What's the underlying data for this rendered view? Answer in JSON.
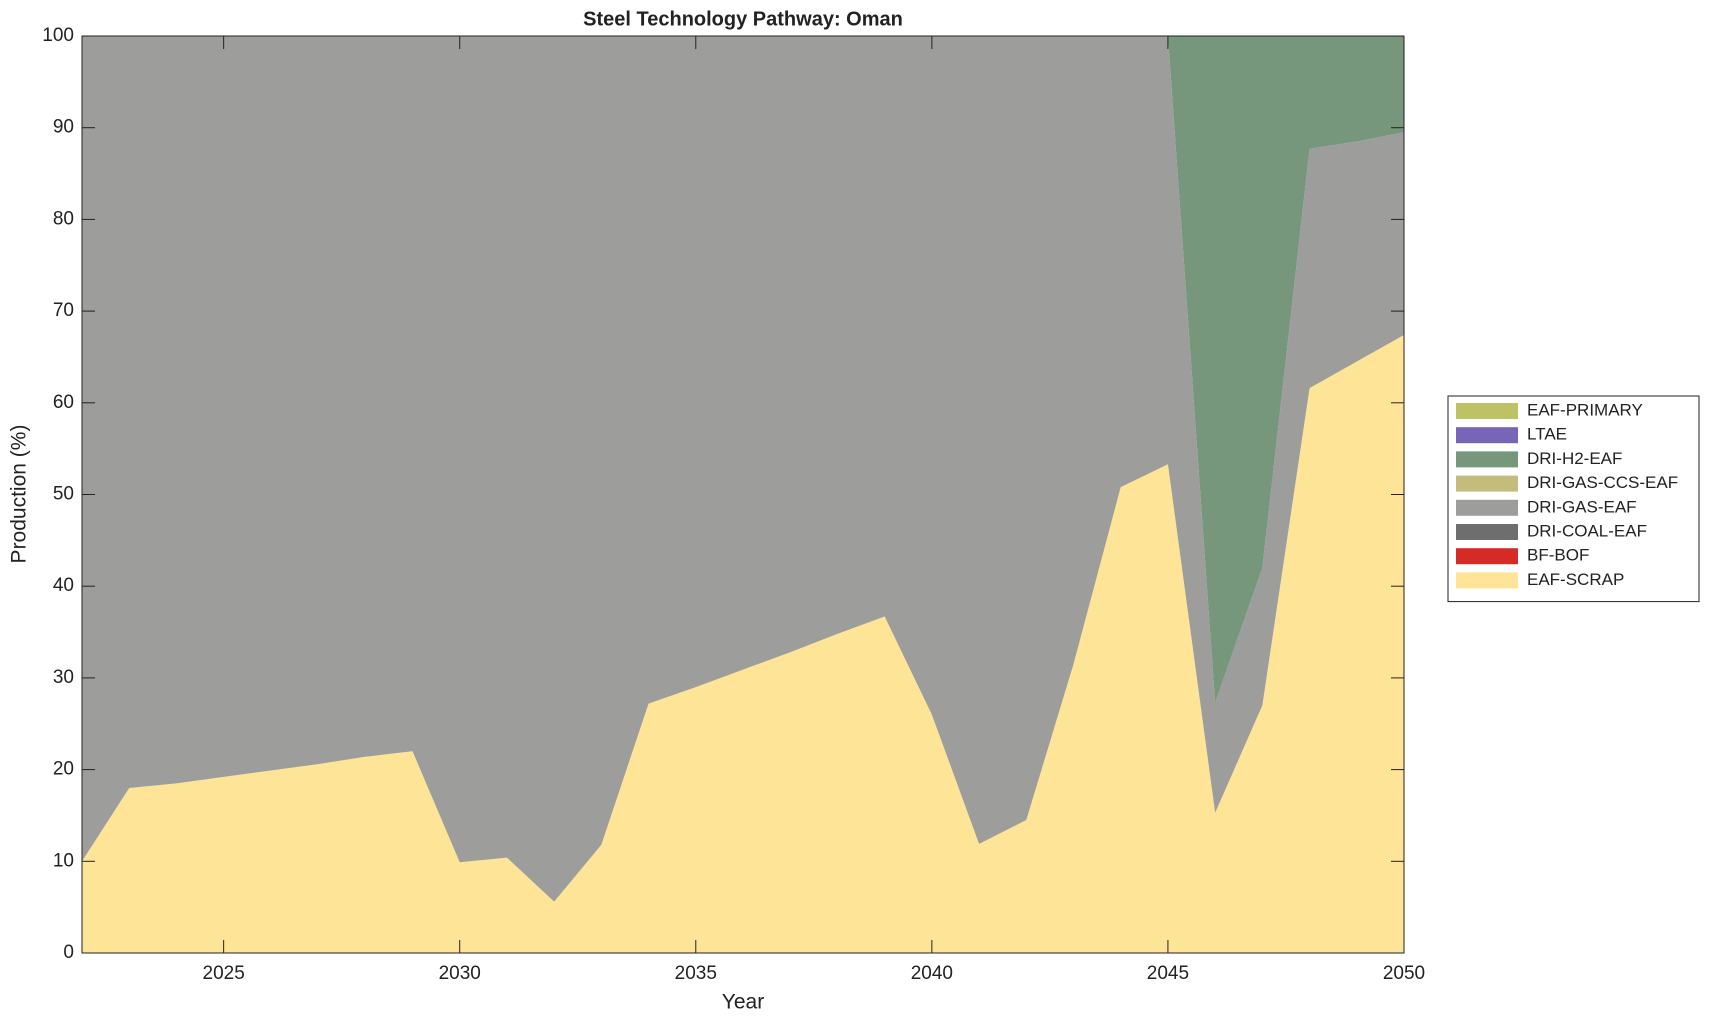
{
  "chart_data": {
    "type": "stacked-area",
    "title": "Steel Technology Pathway: Oman",
    "xlabel": "Year",
    "ylabel": "Production (%)",
    "x": [
      2022,
      2023,
      2024,
      2025,
      2026,
      2027,
      2028,
      2029,
      2030,
      2031,
      2032,
      2033,
      2034,
      2035,
      2036,
      2037,
      2038,
      2039,
      2040,
      2041,
      2042,
      2043,
      2044,
      2045,
      2046,
      2047,
      2048,
      2049,
      2050
    ],
    "xlim": [
      2022,
      2050
    ],
    "xticks": [
      2025,
      2030,
      2035,
      2040,
      2045,
      2050
    ],
    "ylim": [
      0,
      100
    ],
    "yticks": [
      0,
      10,
      20,
      30,
      40,
      50,
      60,
      70,
      80,
      90,
      100
    ],
    "legend": "right",
    "series": [
      {
        "name": "EAF-SCRAP",
        "color": "#fee497",
        "values": [
          10,
          18,
          18.5,
          19.2,
          19.9,
          20.6,
          21.4,
          22,
          9.9,
          10.4,
          5.6,
          11.8,
          27.2,
          29,
          30.9,
          32.8,
          34.8,
          36.7,
          26,
          11.9,
          14.5,
          31.5,
          50.8,
          53.3,
          15.3,
          27,
          61.6,
          64.5,
          67.4
        ]
      },
      {
        "name": "BF-BOF",
        "color": "#d62a27",
        "values": [
          0,
          0,
          0,
          0,
          0,
          0,
          0,
          0,
          0,
          0,
          0,
          0,
          0,
          0,
          0,
          0,
          0,
          0,
          0,
          0,
          0,
          0,
          0,
          0,
          0,
          0,
          0,
          0,
          0
        ]
      },
      {
        "name": "DRI-COAL-EAF",
        "color": "#6e6e6e",
        "values": [
          0,
          0,
          0,
          0,
          0,
          0,
          0,
          0,
          0,
          0,
          0,
          0,
          0,
          0,
          0,
          0,
          0,
          0,
          0,
          0,
          0,
          0,
          0,
          0,
          0,
          0,
          0,
          0,
          0
        ]
      },
      {
        "name": "DRI-GAS-EAF",
        "color": "#9d9d9b",
        "values": [
          90,
          82,
          81.5,
          80.8,
          80.1,
          79.4,
          78.6,
          78,
          90.1,
          89.6,
          94.4,
          88.2,
          72.8,
          71,
          69.1,
          67.2,
          65.2,
          63.3,
          74,
          88.1,
          85.5,
          68.5,
          49.2,
          46.7,
          12,
          15,
          26.1,
          24,
          22.1
        ]
      },
      {
        "name": "DRI-GAS-CCS-EAF",
        "color": "#c4bc7d",
        "values": [
          0,
          0,
          0,
          0,
          0,
          0,
          0,
          0,
          0,
          0,
          0,
          0,
          0,
          0,
          0,
          0,
          0,
          0,
          0,
          0,
          0,
          0,
          0,
          0,
          0,
          0,
          0,
          0,
          0
        ]
      },
      {
        "name": "DRI-H2-EAF",
        "color": "#76977b",
        "values": [
          0,
          0,
          0,
          0,
          0,
          0,
          0,
          0,
          0,
          0,
          0,
          0,
          0,
          0,
          0,
          0,
          0,
          0,
          0,
          0,
          0,
          0,
          0,
          0,
          72.7,
          58,
          12.3,
          11.5,
          10.5
        ]
      },
      {
        "name": "LTAE",
        "color": "#7766b8",
        "values": [
          0,
          0,
          0,
          0,
          0,
          0,
          0,
          0,
          0,
          0,
          0,
          0,
          0,
          0,
          0,
          0,
          0,
          0,
          0,
          0,
          0,
          0,
          0,
          0,
          0,
          0,
          0,
          0,
          0
        ]
      },
      {
        "name": "EAF-PRIMARY",
        "color": "#bdc264",
        "values": [
          0,
          0,
          0,
          0,
          0,
          0,
          0,
          0,
          0,
          0,
          0,
          0,
          0,
          0,
          0,
          0,
          0,
          0,
          0,
          0,
          0,
          0,
          0,
          0,
          0,
          0,
          0,
          0,
          0
        ]
      }
    ]
  }
}
